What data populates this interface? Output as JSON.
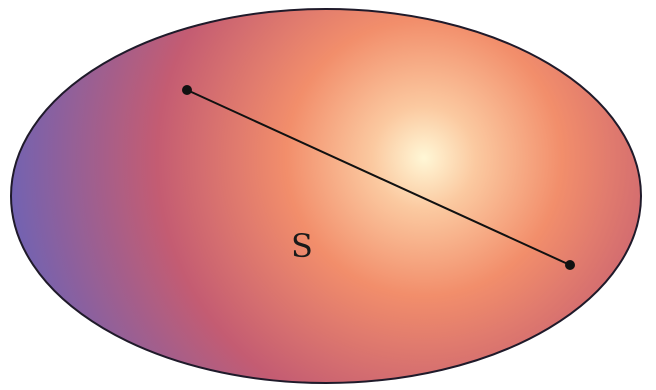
{
  "diagram": {
    "set_label": "S",
    "colors": {
      "outline": "#1f1a2a",
      "segment": "#111111",
      "gradient_center": "#fff7d6",
      "gradient_mid": "#f28e6b",
      "gradient_outer": "#c45c72",
      "gradient_edge": "#6a63b8"
    },
    "points": [
      {
        "name": "point-a"
      },
      {
        "name": "point-b"
      }
    ]
  }
}
